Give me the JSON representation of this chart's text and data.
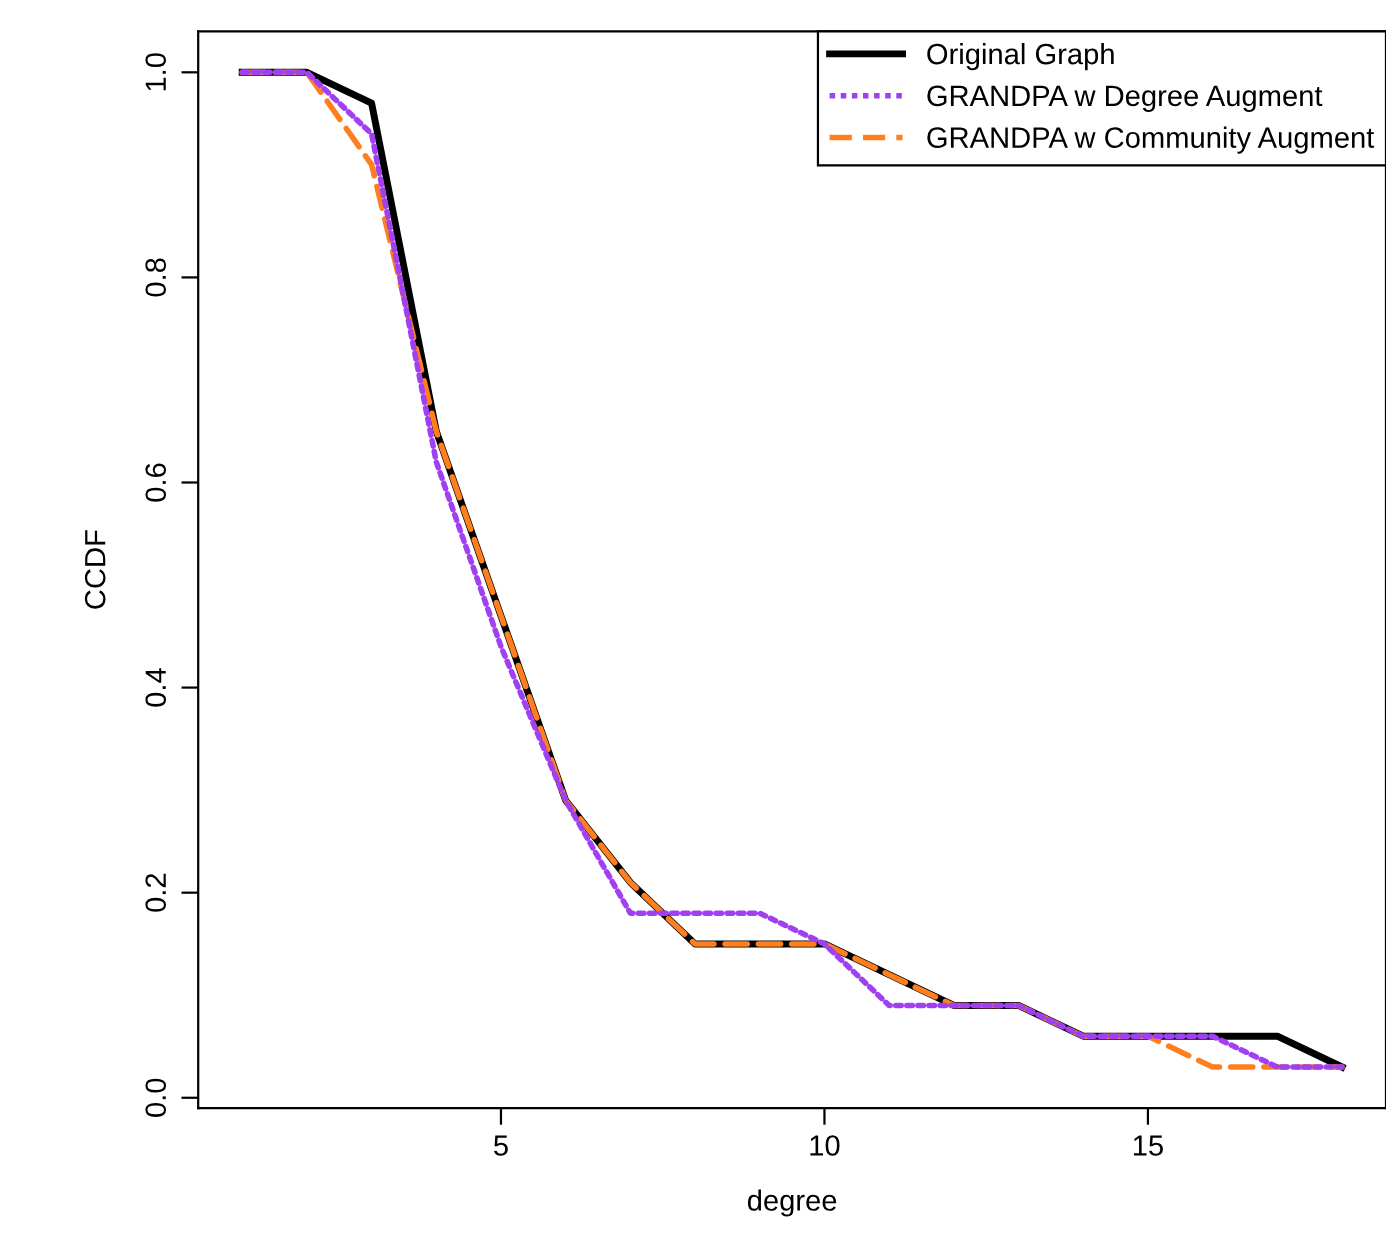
{
  "chart_data": {
    "type": "line",
    "xlabel": "degree",
    "ylabel": "CCDF",
    "x": [
      1,
      2,
      3,
      4,
      5,
      6,
      7,
      8,
      9,
      10,
      11,
      12,
      13,
      14,
      15,
      16,
      17,
      18
    ],
    "series": [
      {
        "name": "Original Graph",
        "color": "#000000",
        "line_style": "solid",
        "values": [
          1.0,
          1.0,
          0.97,
          0.65,
          0.47,
          0.29,
          0.21,
          0.15,
          0.15,
          0.15,
          0.12,
          0.09,
          0.09,
          0.06,
          0.06,
          0.06,
          0.06,
          0.03
        ]
      },
      {
        "name": "GRANDPA w Degree Augment",
        "color": "#a040f0",
        "line_style": "dotted",
        "values": [
          1.0,
          1.0,
          0.94,
          0.62,
          0.44,
          0.29,
          0.18,
          0.18,
          0.18,
          0.15,
          0.09,
          0.09,
          0.09,
          0.06,
          0.06,
          0.06,
          0.03,
          0.03
        ]
      },
      {
        "name": "GRANDPA w Community Augment",
        "color": "#ff7f1e",
        "line_style": "dashed",
        "values": [
          1.0,
          1.0,
          0.91,
          0.65,
          0.47,
          0.29,
          0.21,
          0.15,
          0.15,
          0.15,
          0.12,
          0.09,
          0.09,
          0.06,
          0.06,
          0.03,
          0.03,
          0.03
        ]
      }
    ],
    "xlim": [
      0.32,
      18.68
    ],
    "ylim": [
      -0.01,
      1.04
    ],
    "xticks": [
      5,
      10,
      15
    ],
    "yticks": [
      {
        "value": 0.0,
        "label": "0.0"
      },
      {
        "value": 0.2,
        "label": "0.2"
      },
      {
        "value": 0.4,
        "label": "0.4"
      },
      {
        "value": 0.6,
        "label": "0.6"
      },
      {
        "value": 0.8,
        "label": "0.8"
      },
      {
        "value": 1.0,
        "label": "1.0"
      }
    ],
    "grid": false,
    "legend": "top right"
  }
}
